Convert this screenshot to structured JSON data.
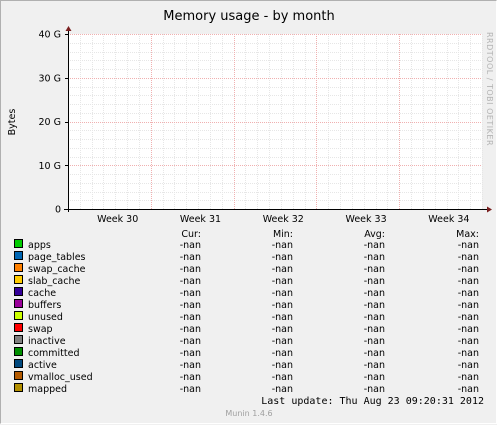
{
  "chart_data": {
    "type": "line",
    "title": "Memory usage - by month",
    "ylabel": "Bytes",
    "xlabel": "",
    "ylim": [
      0,
      40000000000
    ],
    "y_ticks": [
      {
        "label": "0",
        "value": 0
      },
      {
        "label": "10 G",
        "value": 10000000000
      },
      {
        "label": "20 G",
        "value": 20000000000
      },
      {
        "label": "30 G",
        "value": 30000000000
      },
      {
        "label": "40 G",
        "value": 40000000000
      }
    ],
    "categories": [
      "Week 30",
      "Week 31",
      "Week 32",
      "Week 33",
      "Week 34"
    ],
    "grid": true,
    "series": [
      {
        "name": "apps",
        "color": "#00cc00",
        "cur": "-nan",
        "min": "-nan",
        "avg": "-nan",
        "max": "-nan"
      },
      {
        "name": "page_tables",
        "color": "#0066b3",
        "cur": "-nan",
        "min": "-nan",
        "avg": "-nan",
        "max": "-nan"
      },
      {
        "name": "swap_cache",
        "color": "#ff8000",
        "cur": "-nan",
        "min": "-nan",
        "avg": "-nan",
        "max": "-nan"
      },
      {
        "name": "slab_cache",
        "color": "#ffcc00",
        "cur": "-nan",
        "min": "-nan",
        "avg": "-nan",
        "max": "-nan"
      },
      {
        "name": "cache",
        "color": "#330099",
        "cur": "-nan",
        "min": "-nan",
        "avg": "-nan",
        "max": "-nan"
      },
      {
        "name": "buffers",
        "color": "#990099",
        "cur": "-nan",
        "min": "-nan",
        "avg": "-nan",
        "max": "-nan"
      },
      {
        "name": "unused",
        "color": "#ccff00",
        "cur": "-nan",
        "min": "-nan",
        "avg": "-nan",
        "max": "-nan"
      },
      {
        "name": "swap",
        "color": "#ff0000",
        "cur": "-nan",
        "min": "-nan",
        "avg": "-nan",
        "max": "-nan"
      },
      {
        "name": "inactive",
        "color": "#808080",
        "cur": "-nan",
        "min": "-nan",
        "avg": "-nan",
        "max": "-nan"
      },
      {
        "name": "committed",
        "color": "#008f00",
        "cur": "-nan",
        "min": "-nan",
        "avg": "-nan",
        "max": "-nan"
      },
      {
        "name": "active",
        "color": "#00487d",
        "cur": "-nan",
        "min": "-nan",
        "avg": "-nan",
        "max": "-nan"
      },
      {
        "name": "vmalloc_used",
        "color": "#b35a00",
        "cur": "-nan",
        "min": "-nan",
        "avg": "-nan",
        "max": "-nan"
      },
      {
        "name": "mapped",
        "color": "#b38f00",
        "cur": "-nan",
        "min": "-nan",
        "avg": "-nan",
        "max": "-nan"
      }
    ]
  },
  "legend_headers": {
    "cur": "Cur:",
    "min": "Min:",
    "avg": "Avg:",
    "max": "Max:"
  },
  "side_text": "RRDTOOL / TOBI OETIKER",
  "last_update": "Last update:  Thu Aug 23 09:20:31 2012",
  "footer": "Munin 1.4.6"
}
